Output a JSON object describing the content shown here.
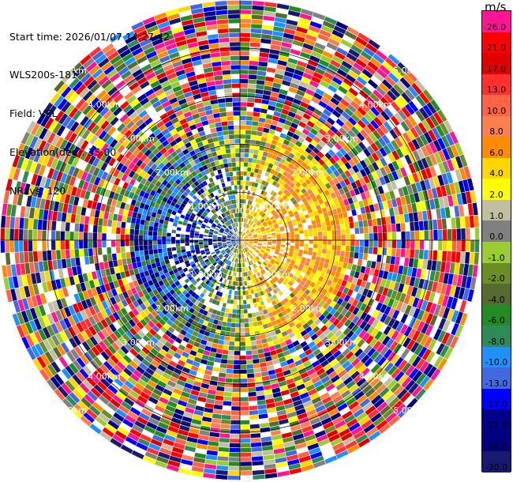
{
  "info": {
    "start_time": "Start time: 2026/01/07 14:27:42",
    "station": "WLS200s-181",
    "field": "Field: VEL",
    "elevation": "Elevation(deg): 35.00",
    "nrays": "NRays: 120"
  },
  "colorbar": {
    "units": "m/s",
    "labels": [
      "26.0",
      "21.0",
      "17.0",
      "13.0",
      "10.0",
      "8.0",
      "6.0",
      "4.0",
      "2.0",
      "1.0",
      "0.0",
      "-1.0",
      "-2.0",
      "-4.0",
      "-6.0",
      "-8.0",
      "-10.0",
      "-13.0",
      "-17.0",
      "-21.0",
      "-26.0",
      "-30.0"
    ],
    "colors": [
      "#ff1493",
      "#ff0000",
      "#e00000",
      "#ff3030",
      "#ff6347",
      "#ff7f50",
      "#ff8c00",
      "#ffd700",
      "#ffff00",
      "#c0c0a0",
      "#808080",
      "#9acd32",
      "#6b8e23",
      "#556b2f",
      "#228b22",
      "#2e8b57",
      "#1e90ff",
      "#4169e1",
      "#0000ff",
      "#00008b",
      "#000080",
      "#191970"
    ]
  },
  "range_rings": {
    "labels": [
      "1.00km",
      "2.00km",
      "3.00km",
      "4.00km",
      "5.00km"
    ]
  },
  "ppi": {
    "nrays": 120,
    "ngates": 52,
    "max_range_km": 5.0
  }
}
